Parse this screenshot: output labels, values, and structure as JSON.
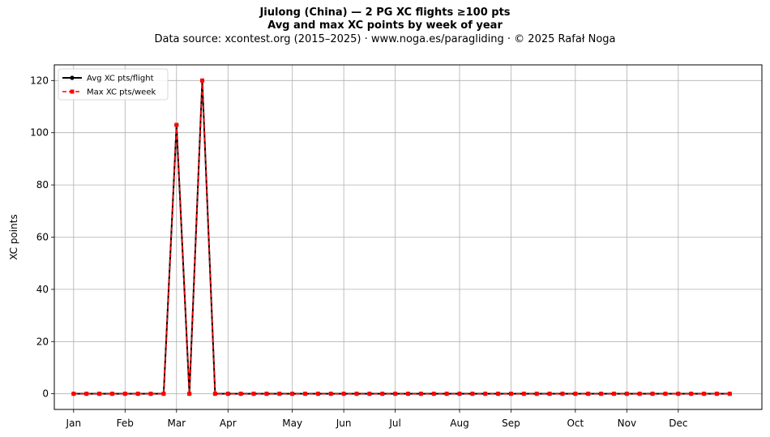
{
  "header": {
    "title": "Jiulong (China)  —  2 PG XC flights ≥100 pts",
    "subtitle": "Avg and max XC points by week of year",
    "source_line": "Data source: xcontest.org (2015–2025)  ·  www.noga.es/paragliding  ·  © 2025 Rafał Noga"
  },
  "chart_data": {
    "type": "line",
    "title": "Jiulong (China)  —  2 PG XC flights ≥100 pts",
    "subtitle": "Avg and max XC points by week of year",
    "xlabel": "",
    "ylabel": "XC points",
    "xlim": [
      -1.5,
      53.5
    ],
    "ylim": [
      -6,
      126
    ],
    "yticks": [
      0,
      20,
      40,
      60,
      80,
      100,
      120
    ],
    "grid": true,
    "legend_position": "top-left",
    "month_ticks": [
      {
        "label": "Jan",
        "week": 0
      },
      {
        "label": "Feb",
        "week": 4
      },
      {
        "label": "Mar",
        "week": 8
      },
      {
        "label": "Apr",
        "week": 12
      },
      {
        "label": "May",
        "week": 17
      },
      {
        "label": "Jun",
        "week": 21
      },
      {
        "label": "Jul",
        "week": 25
      },
      {
        "label": "Aug",
        "week": 30
      },
      {
        "label": "Sep",
        "week": 34
      },
      {
        "label": "Oct",
        "week": 39
      },
      {
        "label": "Nov",
        "week": 43
      },
      {
        "label": "Dec",
        "week": 47
      }
    ],
    "x": [
      0,
      1,
      2,
      3,
      4,
      5,
      6,
      7,
      8,
      9,
      10,
      11,
      12,
      13,
      14,
      15,
      16,
      17,
      18,
      19,
      20,
      21,
      22,
      23,
      24,
      25,
      26,
      27,
      28,
      29,
      30,
      31,
      32,
      33,
      34,
      35,
      36,
      37,
      38,
      39,
      40,
      41,
      42,
      43,
      44,
      45,
      46,
      47,
      48,
      49,
      50,
      51
    ],
    "series": [
      {
        "name": "Avg XC pts/flight",
        "color": "#000000",
        "marker": "circle",
        "values": [
          0,
          0,
          0,
          0,
          0,
          0,
          0,
          0,
          103,
          0,
          120,
          0,
          0,
          0,
          0,
          0,
          0,
          0,
          0,
          0,
          0,
          0,
          0,
          0,
          0,
          0,
          0,
          0,
          0,
          0,
          0,
          0,
          0,
          0,
          0,
          0,
          0,
          0,
          0,
          0,
          0,
          0,
          0,
          0,
          0,
          0,
          0,
          0,
          0,
          0,
          0,
          0
        ]
      },
      {
        "name": "Max XC pts/week",
        "color": "#ff0000",
        "marker": "square",
        "values": [
          0,
          0,
          0,
          0,
          0,
          0,
          0,
          0,
          103,
          0,
          120,
          0,
          0,
          0,
          0,
          0,
          0,
          0,
          0,
          0,
          0,
          0,
          0,
          0,
          0,
          0,
          0,
          0,
          0,
          0,
          0,
          0,
          0,
          0,
          0,
          0,
          0,
          0,
          0,
          0,
          0,
          0,
          0,
          0,
          0,
          0,
          0,
          0,
          0,
          0,
          0,
          0
        ]
      }
    ]
  }
}
